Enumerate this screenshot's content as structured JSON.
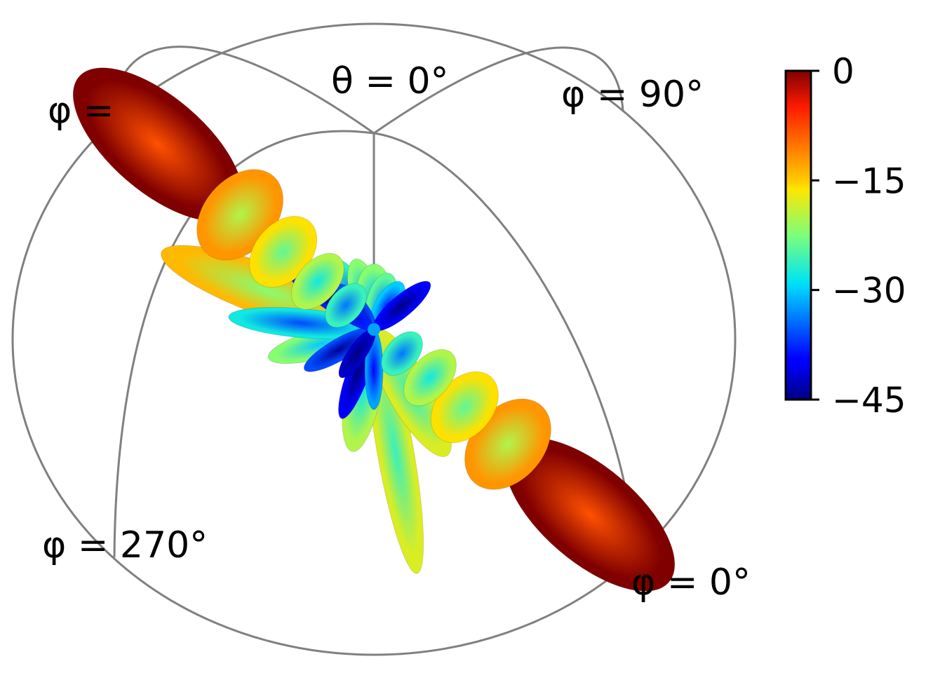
{
  "chart_data": {
    "type": "3d-radiation-pattern",
    "colormap": "jet",
    "colorbar": {
      "min": -45,
      "max": 0,
      "ticks": [
        0,
        -15,
        -30,
        -45
      ],
      "tick_labels": [
        "0",
        "−15",
        "−30",
        "−45"
      ]
    },
    "annotations": {
      "theta0": "θ = 0°",
      "phi_top_left": "φ = ",
      "phi90": "φ = 90°",
      "phi270": "φ = 270°",
      "phi0": "φ = 0°"
    },
    "lobes": [
      {
        "dist": 1.0,
        "len": 0.3,
        "wid": 0.13,
        "level": 0
      },
      {
        "dist": -1.0,
        "len": 0.3,
        "wid": 0.13,
        "level": 0
      },
      {
        "dist": 0.62,
        "len": 0.14,
        "wid": 0.09,
        "level": -12
      },
      {
        "dist": -0.62,
        "len": 0.14,
        "wid": 0.09,
        "level": -12
      },
      {
        "dist": 0.42,
        "len": 0.11,
        "wid": 0.07,
        "level": -16
      },
      {
        "dist": -0.42,
        "len": 0.11,
        "wid": 0.07,
        "level": -16
      },
      {
        "dist": 0.26,
        "len": 0.09,
        "wid": 0.05,
        "level": -20
      },
      {
        "dist": -0.26,
        "len": 0.09,
        "wid": 0.05,
        "level": -20
      },
      {
        "dist": 0.13,
        "len": 0.07,
        "wid": 0.04,
        "level": -26
      },
      {
        "dist": -0.13,
        "len": 0.07,
        "wid": 0.04,
        "level": -26
      }
    ],
    "side_lobes": [
      {
        "angle": 200,
        "len": 0.62,
        "wid": 0.07,
        "level": -14
      },
      {
        "angle": 80,
        "len": 0.68,
        "wid": 0.05,
        "level": -18
      },
      {
        "angle": 165,
        "len": 0.3,
        "wid": 0.04,
        "level": -22
      },
      {
        "angle": 100,
        "len": 0.34,
        "wid": 0.05,
        "level": -20
      },
      {
        "angle": 60,
        "len": 0.4,
        "wid": 0.06,
        "level": -18
      },
      {
        "angle": 185,
        "len": 0.4,
        "wid": 0.04,
        "level": -28
      },
      {
        "angle": 150,
        "len": 0.22,
        "wid": 0.03,
        "level": -36
      },
      {
        "angle": 110,
        "len": 0.26,
        "wid": 0.03,
        "level": -40
      },
      {
        "angle": 90,
        "len": 0.22,
        "wid": 0.025,
        "level": -32
      },
      {
        "angle": 125,
        "len": 0.16,
        "wid": 0.025,
        "level": -42
      },
      {
        "angle": 240,
        "len": 0.22,
        "wid": 0.04,
        "level": -26
      },
      {
        "angle": 255,
        "len": 0.2,
        "wid": 0.04,
        "level": -22
      },
      {
        "angle": 270,
        "len": 0.18,
        "wid": 0.05,
        "level": -22
      },
      {
        "angle": 285,
        "len": 0.16,
        "wid": 0.04,
        "level": -24
      },
      {
        "angle": 300,
        "len": 0.15,
        "wid": 0.035,
        "level": -30
      },
      {
        "angle": 230,
        "len": 0.16,
        "wid": 0.03,
        "level": -36
      },
      {
        "angle": 215,
        "len": 0.3,
        "wid": 0.03,
        "level": -38
      },
      {
        "angle": 320,
        "len": 0.2,
        "wid": 0.03,
        "level": -40
      }
    ]
  }
}
